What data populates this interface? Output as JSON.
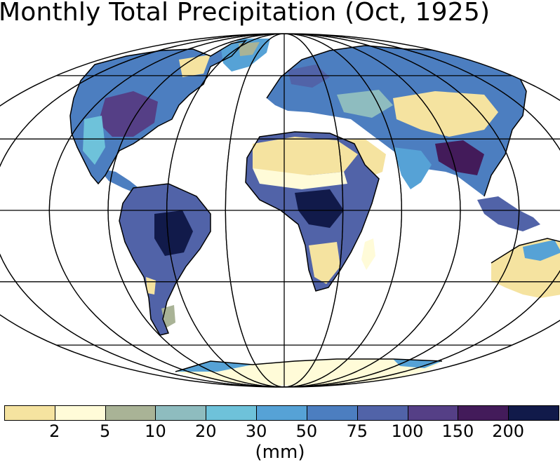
{
  "title": "Monthly Total Precipitation (Oct, 1925)",
  "legend": {
    "units": "(mm)",
    "colors": [
      "#f5e3a0",
      "#fffbd8",
      "#a9b396",
      "#8ebcbf",
      "#6ec2da",
      "#56a2d6",
      "#4c7ec0",
      "#5163a8",
      "#553f86",
      "#431b5a",
      "#111a4a"
    ],
    "ticks": [
      "2",
      "5",
      "10",
      "20",
      "30",
      "50",
      "75",
      "100",
      "150",
      "200"
    ]
  },
  "map": {
    "projection": "mollweide",
    "graticule": {
      "lat_step_deg": 30,
      "lon_step_deg": 30
    },
    "ocean_color": "#ffffff",
    "land_outline_color": "#000000"
  }
}
